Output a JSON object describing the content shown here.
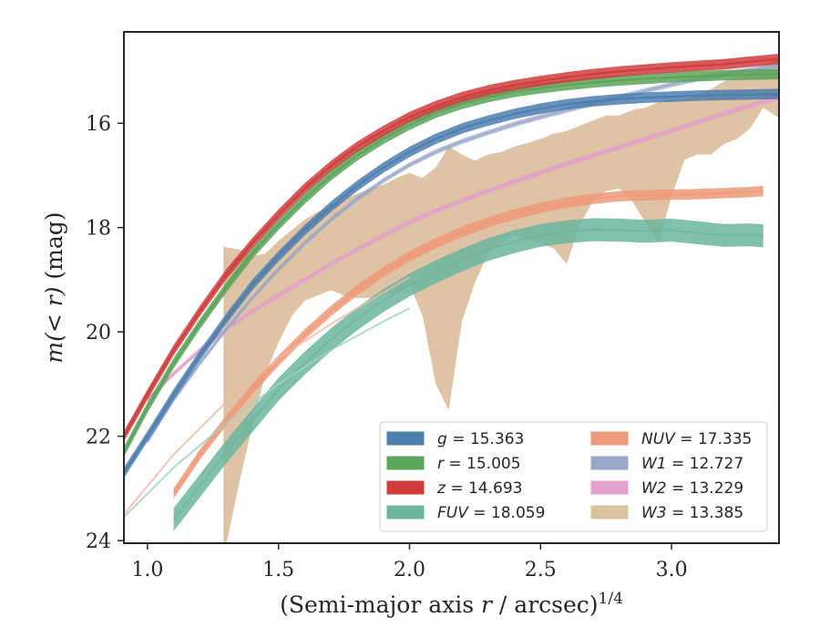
{
  "chart_data": {
    "type": "line",
    "xlabel": "(Semi-major axis r / arcsec)",
    "xlabel_italic_part": "r",
    "xlabel_prefix": "(Semi-major axis ",
    "xlabel_suffix": " / arcsec)",
    "xlabel_exponent": "1/4",
    "ylabel_prefix": "m(< r)",
    "ylabel_suffix": " (mag)",
    "xlim": [
      0.91,
      3.41
    ],
    "ylim": [
      24.05,
      14.25
    ],
    "y_inverted": true,
    "grid": false,
    "legend_position": "lower-right",
    "legend_columns": 2,
    "x_ticks": [
      1.0,
      1.5,
      2.0,
      2.5,
      3.0
    ],
    "x_tick_labels": [
      "1.0",
      "1.5",
      "2.0",
      "2.5",
      "3.0"
    ],
    "y_ticks": [
      16,
      18,
      20,
      22,
      24
    ],
    "y_tick_labels": [
      "16",
      "18",
      "20",
      "22",
      "24"
    ],
    "series": [
      {
        "name": "g",
        "legend_value": "15.363",
        "color": "#4c7eae",
        "x": [
          0.91,
          1.0,
          1.1,
          1.2,
          1.3,
          1.4,
          1.5,
          1.6,
          1.7,
          1.8,
          1.9,
          2.0,
          2.1,
          2.2,
          2.3,
          2.4,
          2.5,
          2.6,
          2.7,
          2.8,
          2.9,
          3.0,
          3.1,
          3.2,
          3.3,
          3.41
        ],
        "y": [
          22.7,
          22.0,
          21.2,
          20.45,
          19.75,
          19.1,
          18.55,
          18.05,
          17.6,
          17.2,
          16.85,
          16.55,
          16.3,
          16.1,
          15.95,
          15.82,
          15.72,
          15.64,
          15.58,
          15.54,
          15.51,
          15.49,
          15.47,
          15.46,
          15.45,
          15.44
        ],
        "band": 0.1
      },
      {
        "name": "r",
        "legend_value": "15.005",
        "color": "#5aa55a",
        "x": [
          0.91,
          1.0,
          1.1,
          1.2,
          1.3,
          1.4,
          1.5,
          1.6,
          1.7,
          1.8,
          1.9,
          2.0,
          2.1,
          2.2,
          2.3,
          2.4,
          2.5,
          2.6,
          2.7,
          2.8,
          2.9,
          3.0,
          3.1,
          3.2,
          3.3,
          3.41
        ],
        "y": [
          22.3,
          21.45,
          20.6,
          19.85,
          19.15,
          18.5,
          17.95,
          17.45,
          17.0,
          16.62,
          16.3,
          16.03,
          15.8,
          15.63,
          15.5,
          15.4,
          15.33,
          15.27,
          15.22,
          15.18,
          15.15,
          15.12,
          15.1,
          15.08,
          15.07,
          15.06
        ],
        "band": 0.1
      },
      {
        "name": "z",
        "legend_value": "14.693",
        "color": "#d03c3c",
        "x": [
          0.91,
          1.0,
          1.1,
          1.2,
          1.3,
          1.4,
          1.5,
          1.6,
          1.7,
          1.8,
          1.9,
          2.0,
          2.1,
          2.2,
          2.3,
          2.4,
          2.5,
          2.6,
          2.7,
          2.8,
          2.9,
          3.0,
          3.1,
          3.2,
          3.3,
          3.41
        ],
        "y": [
          22.0,
          21.2,
          20.35,
          19.6,
          18.9,
          18.3,
          17.75,
          17.25,
          16.82,
          16.45,
          16.15,
          15.88,
          15.67,
          15.5,
          15.37,
          15.27,
          15.19,
          15.12,
          15.06,
          15.01,
          14.97,
          14.93,
          14.9,
          14.87,
          14.82,
          14.77
        ],
        "band": 0.1
      },
      {
        "name": "FUV",
        "legend_value": "18.059",
        "color": "#6bb59f",
        "x": [
          1.1,
          1.2,
          1.3,
          1.4,
          1.5,
          1.6,
          1.7,
          1.8,
          1.9,
          2.0,
          2.1,
          2.2,
          2.3,
          2.4,
          2.5,
          2.6,
          2.7,
          2.8,
          2.9,
          3.0,
          3.1,
          3.2,
          3.3,
          3.35
        ],
        "y": [
          23.6,
          22.95,
          22.3,
          21.7,
          21.1,
          20.6,
          20.15,
          19.75,
          19.4,
          19.1,
          18.85,
          18.62,
          18.42,
          18.27,
          18.15,
          18.08,
          18.04,
          18.05,
          18.07,
          18.05,
          18.1,
          18.15,
          18.14,
          18.16
        ],
        "band": 0.22
      },
      {
        "name": "NUV",
        "legend_value": "17.335",
        "color": "#ee9a7a",
        "x": [
          1.1,
          1.2,
          1.3,
          1.4,
          1.5,
          1.6,
          1.7,
          1.8,
          1.9,
          2.0,
          2.1,
          2.2,
          2.3,
          2.4,
          2.5,
          2.6,
          2.7,
          2.8,
          2.9,
          3.0,
          3.1,
          3.2,
          3.3,
          3.35
        ],
        "y": [
          23.1,
          22.35,
          21.7,
          21.1,
          20.55,
          20.05,
          19.6,
          19.2,
          18.85,
          18.55,
          18.3,
          18.08,
          17.9,
          17.75,
          17.62,
          17.52,
          17.45,
          17.4,
          17.38,
          17.37,
          17.36,
          17.34,
          17.32,
          17.3
        ],
        "band": 0.1
      },
      {
        "name": "W1",
        "legend_value": "12.727",
        "color": "#98a8c8",
        "x": [
          1.0,
          1.1,
          1.2,
          1.3,
          1.4,
          1.5,
          1.6,
          1.7,
          1.8,
          1.9,
          2.0,
          2.1,
          2.2,
          2.3,
          2.4,
          2.5,
          2.6,
          2.7,
          2.8,
          2.9,
          3.0,
          3.1,
          3.2,
          3.3,
          3.41
        ],
        "y": [
          22.1,
          21.3,
          20.6,
          19.95,
          19.35,
          18.8,
          18.3,
          17.85,
          17.45,
          17.1,
          16.8,
          16.55,
          16.35,
          16.18,
          16.02,
          15.88,
          15.75,
          15.62,
          15.5,
          15.38,
          15.26,
          15.15,
          15.06,
          14.98,
          14.9
        ],
        "band": 0.05
      },
      {
        "name": "W2",
        "legend_value": "13.229",
        "color": "#e3a0cc",
        "x": [
          1.0,
          1.1,
          1.2,
          1.3,
          1.4,
          1.5,
          1.6,
          1.7,
          1.8,
          1.9,
          2.0,
          2.1,
          2.2,
          2.3,
          2.4,
          2.5,
          2.6,
          2.7,
          2.8,
          2.9,
          3.0,
          3.1,
          3.2,
          3.3,
          3.41
        ],
        "y": [
          21.3,
          20.8,
          20.35,
          19.95,
          19.6,
          19.3,
          19.0,
          18.7,
          18.42,
          18.15,
          17.9,
          17.68,
          17.48,
          17.3,
          17.12,
          16.95,
          16.78,
          16.62,
          16.46,
          16.3,
          16.14,
          15.98,
          15.82,
          15.66,
          15.5
        ],
        "band": 0.05
      },
      {
        "name": "W3",
        "legend_value": "13.385",
        "color": "#dcc19f",
        "band_x": [
          1.29,
          1.3,
          1.35,
          1.4,
          1.45,
          1.5,
          1.55,
          1.6,
          1.65,
          1.7,
          1.75,
          1.8,
          1.85,
          1.9,
          1.95,
          2.0,
          2.05,
          2.1,
          2.15,
          2.2,
          2.25,
          2.3,
          2.35,
          2.4,
          2.45,
          2.5,
          2.55,
          2.6,
          2.65,
          2.7,
          2.75,
          2.8,
          2.85,
          2.9,
          2.95,
          3.0,
          3.05,
          3.1,
          3.15,
          3.2,
          3.25,
          3.3,
          3.35,
          3.41
        ],
        "band_upper": [
          18.35,
          18.38,
          18.42,
          18.55,
          18.5,
          18.25,
          18.05,
          17.85,
          17.7,
          17.6,
          17.45,
          17.35,
          17.25,
          17.18,
          17.05,
          16.95,
          17.05,
          16.85,
          16.45,
          16.6,
          16.72,
          16.6,
          16.55,
          16.45,
          16.38,
          16.3,
          16.2,
          16.15,
          16.05,
          15.95,
          15.85,
          15.85,
          15.75,
          15.7,
          15.6,
          15.55,
          15.55,
          15.45,
          15.35,
          15.2,
          15.1,
          15.0,
          14.9,
          14.78
        ],
        "band_lower": [
          24.1,
          24.1,
          22.9,
          21.8,
          20.8,
          20.2,
          19.7,
          19.4,
          19.3,
          19.2,
          19.3,
          19.35,
          19.35,
          19.3,
          19.25,
          19.1,
          19.7,
          21.0,
          21.5,
          19.8,
          19.05,
          18.5,
          18.3,
          18.15,
          18.25,
          18.3,
          18.4,
          18.7,
          17.95,
          17.5,
          17.3,
          17.25,
          17.5,
          17.9,
          18.3,
          17.4,
          16.7,
          16.6,
          16.6,
          16.4,
          16.3,
          16.1,
          15.7,
          15.9
        ],
        "band": 0
      }
    ]
  }
}
